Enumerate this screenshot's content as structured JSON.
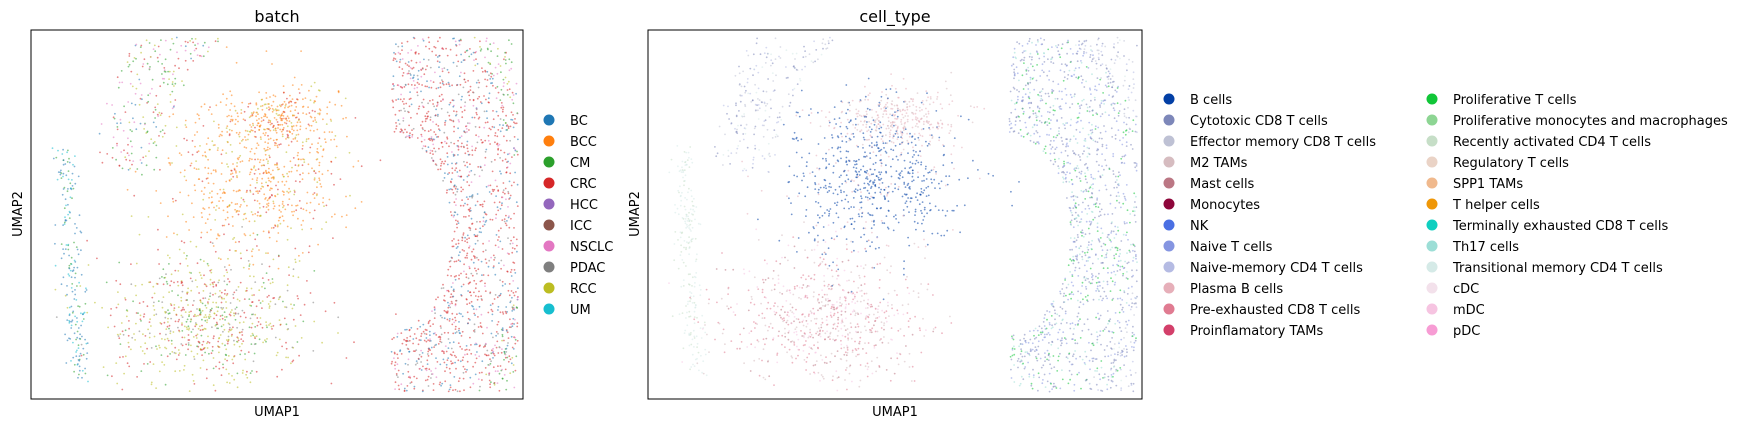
{
  "chart_data": [
    {
      "type": "scatter",
      "title": "batch",
      "xlabel": "UMAP1",
      "ylabel": "UMAP2",
      "xticks": false,
      "yticks": false,
      "legend_position": "right",
      "series": [
        {
          "name": "BC",
          "color": "#1f77b4"
        },
        {
          "name": "BCC",
          "color": "#ff7f0e"
        },
        {
          "name": "CM",
          "color": "#2ca02c"
        },
        {
          "name": "CRC",
          "color": "#d62728"
        },
        {
          "name": "HCC",
          "color": "#9467bd"
        },
        {
          "name": "ICC",
          "color": "#8c564b"
        },
        {
          "name": "NSCLC",
          "color": "#e377c2"
        },
        {
          "name": "PDAC",
          "color": "#7f7f7f"
        },
        {
          "name": "RCC",
          "color": "#bcbd22"
        },
        {
          "name": "UM",
          "color": "#17becf"
        }
      ]
    },
    {
      "type": "scatter",
      "title": "cell_type",
      "xlabel": "UMAP1",
      "ylabel": "UMAP2",
      "xticks": false,
      "yticks": false,
      "legend_position": "right",
      "legend_columns": 2,
      "series": [
        {
          "name": "B cells",
          "color": "#023fa5"
        },
        {
          "name": "Cytotoxic CD8 T cells",
          "color": "#7d87b9"
        },
        {
          "name": "Effector memory CD8 T cells",
          "color": "#bec1d4"
        },
        {
          "name": "M2 TAMs",
          "color": "#d6bcc0"
        },
        {
          "name": "Mast cells",
          "color": "#bb7784"
        },
        {
          "name": "Monocytes",
          "color": "#8e063b"
        },
        {
          "name": "NK",
          "color": "#4a6fe3"
        },
        {
          "name": "Naive T cells",
          "color": "#8595e1"
        },
        {
          "name": "Naive-memory CD4 T cells",
          "color": "#b5bbe3"
        },
        {
          "name": "Plasma B cells",
          "color": "#e6afb9"
        },
        {
          "name": "Pre-exhausted CD8 T cells",
          "color": "#e07b91"
        },
        {
          "name": "Proinflamatory TAMs",
          "color": "#d33f6a"
        },
        {
          "name": "Proliferative T cells",
          "color": "#11c638"
        },
        {
          "name": "Proliferative monocytes and macrophages",
          "color": "#8dd593"
        },
        {
          "name": "Recently activated CD4 T cells",
          "color": "#c6dec7"
        },
        {
          "name": "Regulatory T cells",
          "color": "#ead3c6"
        },
        {
          "name": "SPP1 TAMs",
          "color": "#f0b98d"
        },
        {
          "name": "T helper cells",
          "color": "#ef9708"
        },
        {
          "name": "Terminally exhausted CD8 T cells",
          "color": "#0fcfc0"
        },
        {
          "name": "Th17 cells",
          "color": "#9cded6"
        },
        {
          "name": "Transitional memory CD4 T cells",
          "color": "#d5eae7"
        },
        {
          "name": "cDC",
          "color": "#f3e1eb"
        },
        {
          "name": "mDC",
          "color": "#f6c4e1"
        },
        {
          "name": "pDC",
          "color": "#f79cd4"
        }
      ]
    }
  ]
}
